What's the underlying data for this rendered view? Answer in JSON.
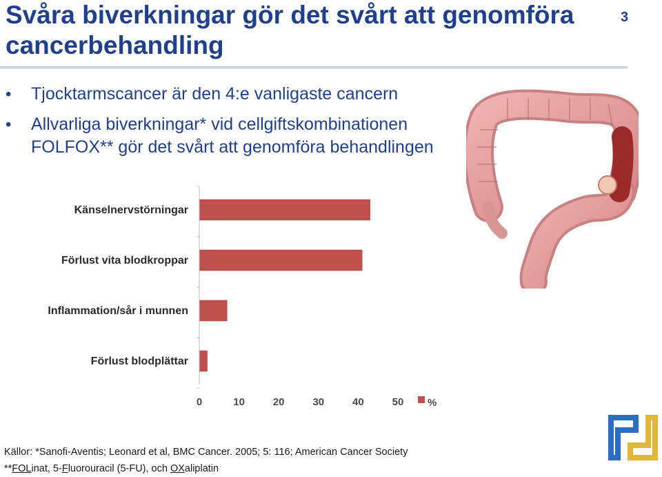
{
  "slide": {
    "title": "Svåra biverkningar gör det svårt att genomföra cancerbehandling",
    "page_number": "3",
    "bullets": [
      "Tjocktarmscancer är den 4:e vanligaste cancern",
      "Allvarliga biverkningar* vid cellgiftskombinationen FOLFOX** gör det svårt att genomföra behandlingen"
    ],
    "sources": {
      "line1": "Källor: *Sanofi-Aventis; Leonard et al, BMC Cancer. 2005; 5: 116; American Cancer Society",
      "line2_parts": [
        "**",
        "FOL",
        "inat, 5-",
        "F",
        "luorouracil (5-FU), och ",
        "OX",
        "aliplatin"
      ]
    }
  },
  "colors": {
    "title": "#1f3f8f",
    "bar": "#c0504d",
    "logo_blue": "#2b6cc4",
    "logo_gold": "#e3b53a"
  },
  "icons": {
    "illustration": "colon-with-tumor-illustration",
    "logo": "company-logo-icon"
  },
  "chart_data": {
    "type": "bar",
    "orientation": "horizontal",
    "categories": [
      "Känselnervstörningar",
      "Förlust vita blodkroppar",
      "Inflammation/sår i munnen",
      "Förlust blodplättar"
    ],
    "series": [
      {
        "name": "%",
        "values": [
          43,
          41,
          7,
          2
        ]
      }
    ],
    "xlim": [
      0,
      50
    ],
    "xticks": [
      0,
      10,
      20,
      30,
      40,
      50
    ],
    "legend": "bottom-right",
    "grid": false
  }
}
